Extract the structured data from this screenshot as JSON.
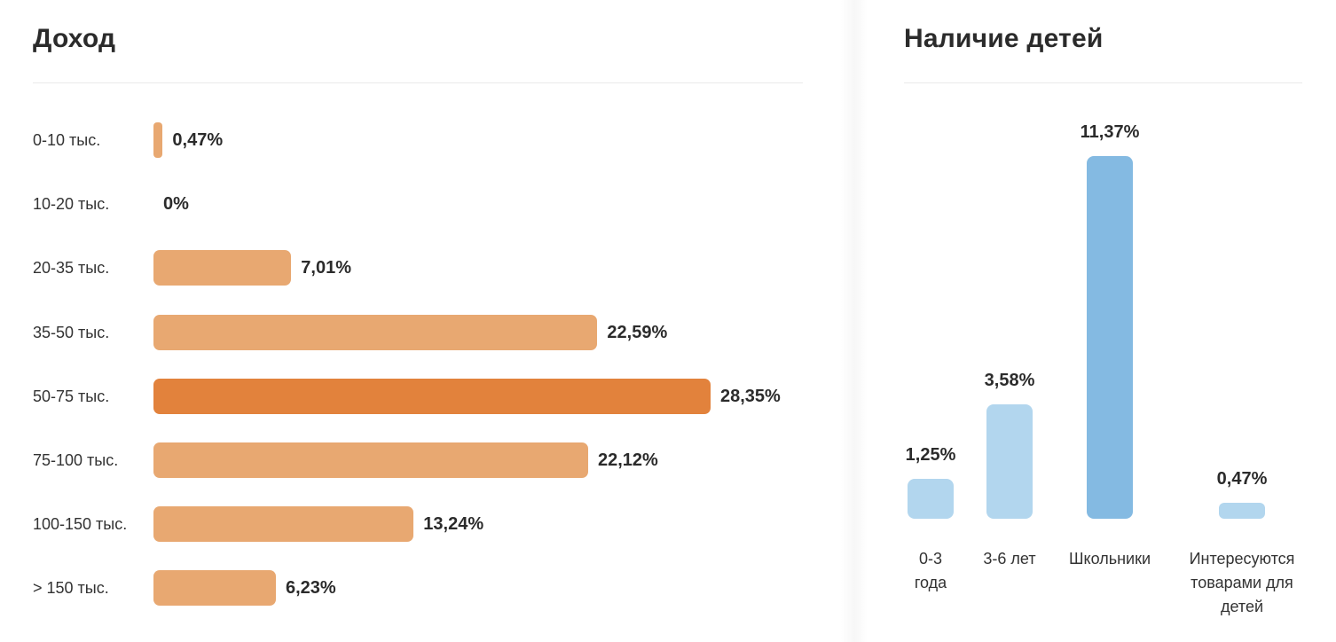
{
  "income_panel": {
    "title": "Доход"
  },
  "children_panel": {
    "title": "Наличие детей"
  },
  "chart_data": [
    {
      "type": "bar",
      "orientation": "horizontal",
      "title": "Доход",
      "categories": [
        "0-10 тыс.",
        "10-20 тыс.",
        "20-35 тыс.",
        "35-50 тыс.",
        "50-75 тыс.",
        "75-100 тыс.",
        "100-150 тыс.",
        "> 150 тыс."
      ],
      "values": [
        0.47,
        0,
        7.01,
        22.59,
        28.35,
        22.12,
        13.24,
        6.23
      ],
      "value_labels": [
        "0,47%",
        "0%",
        "7,01%",
        "22,59%",
        "28,35%",
        "22,12%",
        "13,24%",
        "6,23%"
      ],
      "unit": "%",
      "highlight_index": 4,
      "colors": {
        "bar": "#e8a871",
        "highlight": "#e2823c"
      },
      "grid": false,
      "legend": "none"
    },
    {
      "type": "bar",
      "orientation": "vertical",
      "title": "Наличие детей",
      "categories": [
        "0-3 года",
        "3-6 лет",
        "Школьники",
        "Интересуются товарами для детей"
      ],
      "values": [
        1.25,
        3.58,
        11.37,
        0.47
      ],
      "value_labels": [
        "1,25%",
        "3,58%",
        "11,37%",
        "0,47%"
      ],
      "unit": "%",
      "highlight_index": 2,
      "colors": {
        "bar": "#b2d6ee",
        "highlight": "#84bae2"
      },
      "grid": false,
      "legend": "none"
    }
  ]
}
